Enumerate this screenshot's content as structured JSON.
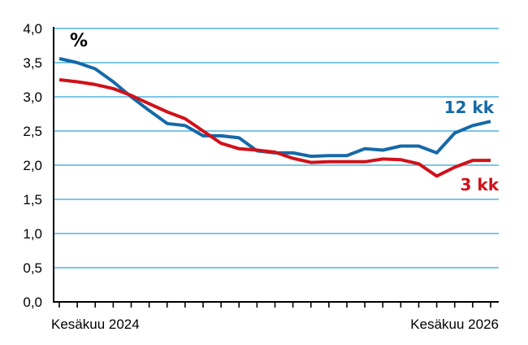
{
  "chart_data": {
    "type": "line",
    "unit_label": "%",
    "x_start_label": "Kesäkuu 2024",
    "x_end_label": "Kesäkuu 2026",
    "y_ticks": [
      "0,0",
      "0,5",
      "1,0",
      "1,5",
      "2,0",
      "2,5",
      "3,0",
      "3,5",
      "4,0"
    ],
    "ylim": [
      0,
      4
    ],
    "grid": true,
    "series": [
      {
        "name": "12 kk",
        "color": "#1569a8",
        "values": [
          3.56,
          3.5,
          3.41,
          3.22,
          3.0,
          2.8,
          2.61,
          2.58,
          2.43,
          2.43,
          2.4,
          2.21,
          2.18,
          2.18,
          2.13,
          2.14,
          2.14,
          2.24,
          2.22,
          2.28,
          2.28,
          2.18,
          2.47,
          2.58,
          2.64
        ]
      },
      {
        "name": "3 kk",
        "color": "#d0111a",
        "values": [
          3.25,
          3.22,
          3.18,
          3.12,
          3.02,
          2.9,
          2.78,
          2.68,
          2.5,
          2.32,
          2.24,
          2.22,
          2.19,
          2.1,
          2.04,
          2.05,
          2.05,
          2.05,
          2.09,
          2.08,
          2.02,
          1.84,
          1.97,
          2.07,
          2.07
        ]
      }
    ]
  }
}
